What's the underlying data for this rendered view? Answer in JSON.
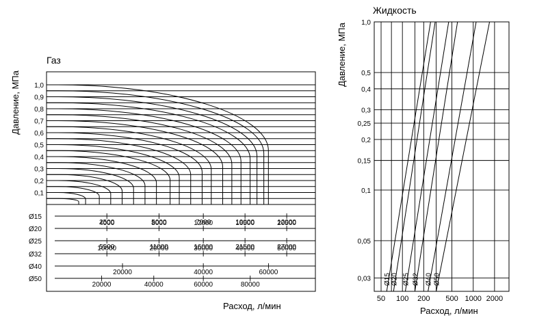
{
  "chart_data": [
    {
      "type": "line",
      "title": "Газ",
      "ylabel": "Давление, МПа",
      "xlabel": "Расход, л/мин",
      "yticks": [
        "0,1",
        "0,2",
        "0,3",
        "0,4",
        "0,5",
        "0,6",
        "0,7",
        "0,8",
        "0,9",
        "1,0"
      ],
      "ylim": [
        0,
        1.0
      ],
      "curve_pressures": [
        0.05,
        0.1,
        0.15,
        0.2,
        0.25,
        0.3,
        0.35,
        0.4,
        0.45,
        0.5,
        0.55,
        0.6,
        0.65,
        0.7,
        0.75,
        0.8,
        0.85,
        0.9,
        0.95,
        1.0
      ],
      "curve_knees": [
        0.09,
        0.12,
        0.18,
        0.23,
        0.28,
        0.33,
        0.38,
        0.43,
        0.49,
        0.53,
        0.58,
        0.63,
        0.67,
        0.72,
        0.76,
        0.8,
        0.84,
        0.87,
        0.9,
        0.92
      ],
      "flow_scales": [
        {
          "name": "Ø15",
          "ticks": [
            {
              "label": "2500",
              "x": 0.2
            },
            {
              "label": "5000",
              "x": 0.4
            },
            {
              "label": "7000",
              "x": 0.57
            },
            {
              "label": "10000",
              "x": 0.73
            },
            {
              "label": "12000",
              "x": 0.89
            }
          ]
        },
        {
          "name": "Ø20",
          "ticks": [
            {
              "label": "4000",
              "x": 0.2
            },
            {
              "label": "8000",
              "x": 0.4
            },
            {
              "label": "12000",
              "x": 0.57
            },
            {
              "label": "16500",
              "x": 0.73
            },
            {
              "label": "20500",
              "x": 0.89
            }
          ]
        },
        {
          "name": "Ø25",
          "ticks": [
            {
              "label": "5500",
              "x": 0.2
            },
            {
              "label": "11000",
              "x": 0.4
            },
            {
              "label": "16000",
              "x": 0.57
            },
            {
              "label": "21500",
              "x": 0.73
            },
            {
              "label": "27000",
              "x": 0.89
            }
          ]
        },
        {
          "name": "Ø32",
          "ticks": [
            {
              "label": "10000",
              "x": 0.2
            },
            {
              "label": "20000",
              "x": 0.4
            },
            {
              "label": "30000",
              "x": 0.57
            },
            {
              "label": "40000",
              "x": 0.73
            },
            {
              "label": "50000",
              "x": 0.89
            }
          ]
        },
        {
          "name": "Ø40",
          "ticks": [
            {
              "label": "20000",
              "x": 0.26
            },
            {
              "label": "40000",
              "x": 0.57
            },
            {
              "label": "60000",
              "x": 0.82
            }
          ]
        },
        {
          "name": "Ø50",
          "ticks": [
            {
              "label": "20000",
              "x": 0.18
            },
            {
              "label": "40000",
              "x": 0.38
            },
            {
              "label": "60000",
              "x": 0.57
            },
            {
              "label": "80000",
              "x": 0.75
            }
          ]
        }
      ]
    },
    {
      "type": "line",
      "title": "Жидкость",
      "ylabel": "Давление, МПа",
      "xlabel": "Расход, л/мин",
      "y_scale": "log",
      "ylim": [
        0.025,
        1.0
      ],
      "yticks": [
        "0,03",
        "0,05",
        "0,1",
        "0,15",
        "0,2",
        "0,25",
        "0,3",
        "0,4",
        "0,5",
        "1,0"
      ],
      "ytick_values": [
        0.03,
        0.05,
        0.1,
        0.15,
        0.2,
        0.25,
        0.3,
        0.4,
        0.5,
        1.0
      ],
      "x_scale": "log",
      "xlim": [
        40,
        3200
      ],
      "xticks": [
        "50",
        "100",
        "200",
        "500",
        "1000",
        "2000"
      ],
      "xtick_values": [
        50,
        100,
        200,
        500,
        1000,
        2000
      ],
      "extra_vlines": [
        70,
        150,
        300
      ],
      "series": [
        {
          "name": "Ø15",
          "points": [
            [
              60,
              0.025
            ],
            [
              250,
              1.0
            ]
          ]
        },
        {
          "name": "Ø20",
          "points": [
            [
              75,
              0.025
            ],
            [
              290,
              1.0
            ]
          ]
        },
        {
          "name": "Ø25",
          "points": [
            [
              110,
              0.025
            ],
            [
              450,
              1.0
            ]
          ]
        },
        {
          "name": "Ø32",
          "points": [
            [
              150,
              0.025
            ],
            [
              600,
              1.0
            ]
          ]
        },
        {
          "name": "Ø40",
          "points": [
            [
              230,
              0.025
            ],
            [
              1100,
              1.0
            ]
          ]
        },
        {
          "name": "Ø50",
          "points": [
            [
              300,
              0.025
            ],
            [
              1700,
              1.0
            ]
          ]
        }
      ]
    }
  ]
}
